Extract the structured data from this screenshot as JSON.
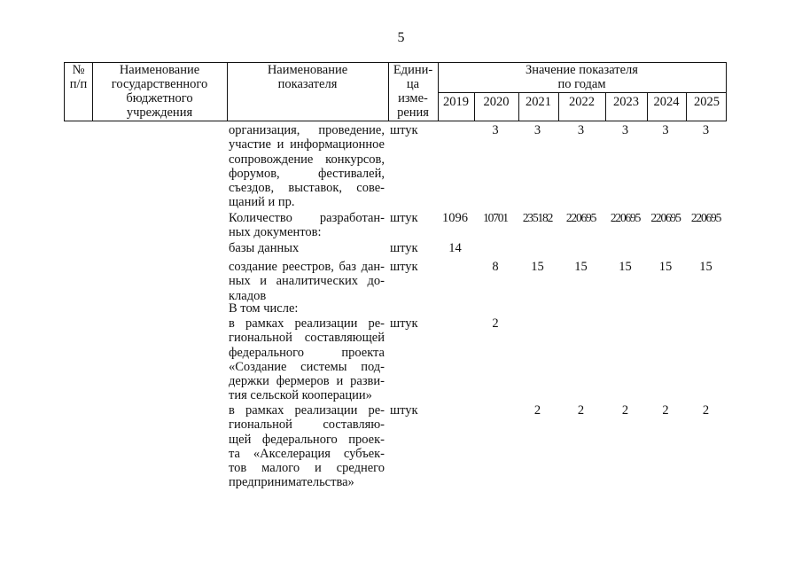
{
  "page_number": "5",
  "header": {
    "col_num": [
      "№",
      "п/п"
    ],
    "col_institution": [
      "Наименование",
      "государственного",
      "бюджетного",
      "учреждения"
    ],
    "col_indicator": [
      "Наименование",
      "показателя"
    ],
    "col_unit": [
      "Едини-",
      "ца",
      "изме-",
      "рения"
    ],
    "col_values": [
      "Значение показателя",
      "по годам"
    ],
    "years": [
      "2019",
      "2020",
      "2021",
      "2022",
      "2023",
      "2024",
      "2025"
    ]
  },
  "rows": [
    {
      "indicator": [
        "организация, проведение,",
        "участие и информационное",
        "сопровождение конкурсов,",
        "форумов, фестивалей,",
        "съездов, выставок, сове-",
        "щаний и пр."
      ],
      "unit": "штук",
      "values": [
        "",
        "3",
        "3",
        "3",
        "3",
        "3",
        "3"
      ]
    },
    {
      "indicator": [
        "Количество разработан-",
        "ных документов:"
      ],
      "unit": "штук",
      "values": [
        "1096",
        "10701",
        "235182",
        "220695",
        "220695",
        "220695",
        "220695"
      ]
    },
    {
      "indicator": [
        "базы данных"
      ],
      "unit": "штук",
      "values": [
        "14",
        "",
        "",
        "",
        "",
        "",
        ""
      ]
    },
    {
      "indicator": [
        "создание реестров, баз дан-",
        "ных и аналитических до-",
        "кладов"
      ],
      "unit": "штук",
      "values": [
        "",
        "8",
        "15",
        "15",
        "15",
        "15",
        "15"
      ]
    },
    {
      "indicator": [
        "В том числе:"
      ],
      "unit": "",
      "values": [
        "",
        "",
        "",
        "",
        "",
        "",
        ""
      ]
    },
    {
      "indicator": [
        "в рамках реализации ре-",
        "гиональной составляющей",
        "федерального проекта",
        "«Создание системы под-",
        "держки фермеров и разви-",
        "тия сельской кооперации»"
      ],
      "unit": "штук",
      "values": [
        "",
        "2",
        "",
        "",
        "",
        "",
        ""
      ]
    },
    {
      "indicator": [
        "в рамках реализации ре-",
        "гиональной составляю-",
        "щей федерального проек-",
        "та «Акселерация субъек-",
        "тов малого и среднего",
        "предпринимательства»"
      ],
      "unit": "штук",
      "values": [
        "",
        "",
        "2",
        "2",
        "2",
        "2",
        "2"
      ]
    }
  ]
}
